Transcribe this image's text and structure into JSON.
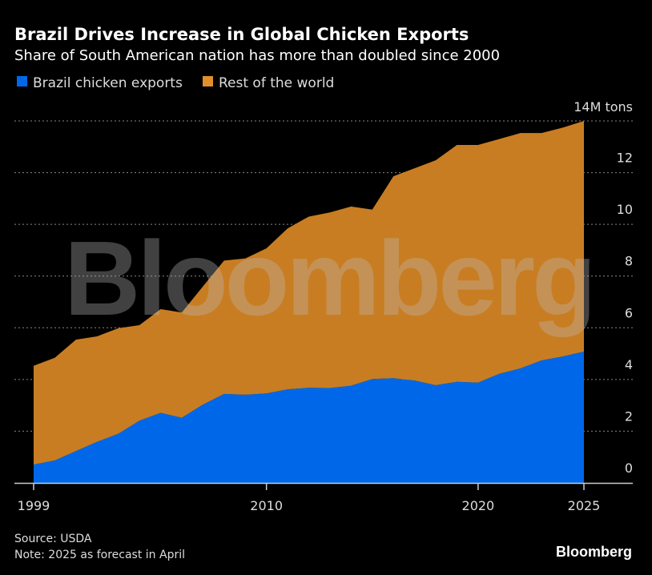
{
  "chart_data": {
    "type": "area",
    "stacked": true,
    "title": "Brazil Drives Increase in Global Chicken Exports",
    "subtitle": "Share of South American nation has more than doubled since 2000",
    "ylabel": "14M tons",
    "ylim": [
      0,
      14
    ],
    "yticks": [
      0,
      2,
      4,
      6,
      8,
      10,
      12
    ],
    "top_tick_label": "14M tons",
    "xlim": [
      1999,
      2025
    ],
    "xticks": [
      "1999",
      "2010",
      "2020",
      "2025"
    ],
    "grid": true,
    "legend_position": "top-left",
    "x": [
      1999,
      2000,
      2001,
      2002,
      2003,
      2004,
      2005,
      2006,
      2007,
      2008,
      2009,
      2010,
      2011,
      2012,
      2013,
      2014,
      2015,
      2016,
      2017,
      2018,
      2019,
      2020,
      2021,
      2022,
      2023,
      2024,
      2025
    ],
    "series": [
      {
        "name": "Brazil chicken exports",
        "color": "#0068e8",
        "values": [
          0.71,
          0.87,
          1.23,
          1.59,
          1.9,
          2.41,
          2.71,
          2.52,
          3.03,
          3.44,
          3.41,
          3.46,
          3.62,
          3.68,
          3.67,
          3.76,
          4.02,
          4.05,
          3.96,
          3.78,
          3.91,
          3.88,
          4.22,
          4.43,
          4.74,
          4.89,
          5.08
        ]
      },
      {
        "name": "Rest of the world",
        "color": "#c97d22",
        "values": [
          3.82,
          3.97,
          4.31,
          4.08,
          4.08,
          3.69,
          4.01,
          4.07,
          4.57,
          5.16,
          5.27,
          5.61,
          6.22,
          6.62,
          6.79,
          6.93,
          6.55,
          7.81,
          8.21,
          8.7,
          9.16,
          9.19,
          9.08,
          9.1,
          8.79,
          8.85,
          8.92
        ]
      }
    ]
  },
  "footer": {
    "source": "Source: USDA",
    "note": "Note: 2025 as forecast in April",
    "logo": "Bloomberg"
  },
  "watermark": "Bloomberg"
}
